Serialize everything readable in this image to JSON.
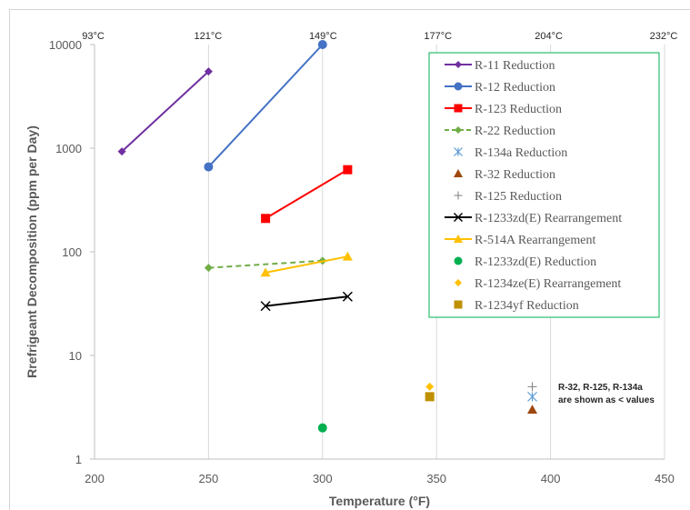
{
  "chart_data": {
    "type": "scatter",
    "xlabel": "Temperature (°F)",
    "ylabel": "Rrefrigeant Decomposition (ppm per Day)",
    "xlim": [
      200,
      450
    ],
    "ylim": [
      1,
      10000
    ],
    "y_scale": "log",
    "x_ticks": [
      "200",
      "250",
      "300",
      "350",
      "400",
      "450"
    ],
    "y_ticks": [
      "1",
      "10",
      "100",
      "1000",
      "10000"
    ],
    "top_axis_ticks": [
      "93°C",
      "121°C",
      "149°C",
      "177°C",
      "204°C",
      "232°C"
    ],
    "grid": "vertical",
    "legend_position": "top-right",
    "annotation": [
      "R-32, R-125, R-134a",
      "are shown as < values"
    ],
    "series": [
      {
        "name": "R-11 Reduction",
        "color": "#7030A0",
        "marker": "diamond",
        "line": "solid",
        "points": [
          [
            212,
            930
          ],
          [
            250,
            5500
          ]
        ]
      },
      {
        "name": "R-12 Reduction",
        "color": "#4472C4",
        "marker": "circle",
        "line": "solid",
        "points": [
          [
            250,
            660
          ],
          [
            300,
            10000
          ]
        ]
      },
      {
        "name": "R-123 Reduction",
        "color": "#FF0000",
        "marker": "square",
        "line": "solid",
        "points": [
          [
            275,
            210
          ],
          [
            311,
            620
          ]
        ]
      },
      {
        "name": "R-22 Reduction",
        "color": "#70AD47",
        "marker": "diamond",
        "line": "dashed",
        "points": [
          [
            250,
            70
          ],
          [
            300,
            82
          ]
        ]
      },
      {
        "name": "R-134a Reduction",
        "color": "#5B9BD5",
        "marker": "asterisk",
        "line": "none",
        "points": [
          [
            392,
            4
          ]
        ]
      },
      {
        "name": "R-32 Reduction",
        "color": "#9E480E",
        "marker": "triangle",
        "line": "none",
        "points": [
          [
            392,
            3
          ]
        ]
      },
      {
        "name": "R-125 Reduction",
        "color": "#7F7F7F",
        "marker": "plus",
        "line": "none",
        "points": [
          [
            392,
            5
          ]
        ]
      },
      {
        "name": "R-1233zd(E) Rearrangement",
        "color": "#000000",
        "marker": "x",
        "line": "solid",
        "points": [
          [
            275,
            30
          ],
          [
            311,
            37
          ]
        ]
      },
      {
        "name": "R-514A Rearrangement",
        "color": "#FFC000",
        "marker": "triangle",
        "line": "solid",
        "points": [
          [
            275,
            63
          ],
          [
            311,
            90
          ]
        ]
      },
      {
        "name": "R-1233zd(E) Reduction",
        "color": "#00B050",
        "marker": "circle",
        "line": "none",
        "points": [
          [
            300,
            2
          ]
        ]
      },
      {
        "name": "R-1234ze(E) Rearrangement",
        "color": "#FFC000",
        "marker": "diamond",
        "line": "none",
        "points": [
          [
            347,
            5
          ]
        ]
      },
      {
        "name": "R-1234yf Reduction",
        "color": "#BF9000",
        "marker": "square",
        "line": "none",
        "points": [
          [
            347,
            4
          ]
        ]
      }
    ]
  }
}
